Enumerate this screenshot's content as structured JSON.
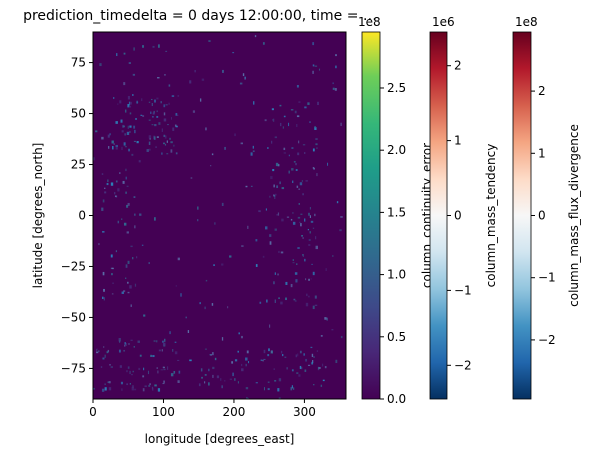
{
  "chart_data": {
    "type": "heatmap",
    "title": "prediction_timedelta = 0 days 12:00:00, time = …",
    "xlabel": "longitude [degrees_east]",
    "ylabel": "latitude [degrees_north]",
    "xlim": [
      0,
      359
    ],
    "ylim": [
      -90,
      90
    ],
    "x_ticks": [
      0,
      100,
      200,
      300
    ],
    "y_ticks": [
      -75,
      -50,
      -25,
      0,
      25,
      50,
      75
    ],
    "background_color": "#440154",
    "highlight_color": "#2c7fb8",
    "colorbars": [
      {
        "label": "column_continuity_error",
        "multiplier": "1e8",
        "colormap": "viridis",
        "range": [
          0,
          2.95
        ],
        "ticks": [
          0.0,
          0.5,
          1.0,
          1.5,
          2.0,
          2.5
        ],
        "tick_labels": [
          "0.0",
          "0.5",
          "1.0",
          "1.5",
          "2.0",
          "2.5"
        ]
      },
      {
        "label": "column_mass_tendency",
        "multiplier": "1e6",
        "colormap": "RdBu_r",
        "range": [
          -2.45,
          2.45
        ],
        "ticks": [
          -2,
          -1,
          0,
          1,
          2
        ],
        "tick_labels": [
          "−2",
          "−1",
          "0",
          "1",
          "2"
        ]
      },
      {
        "label": "column_mass_flux_divergence",
        "multiplier": "1e8",
        "colormap": "RdBu_r",
        "range": [
          -2.95,
          2.95
        ],
        "ticks": [
          -2,
          -1,
          0,
          1,
          2
        ],
        "tick_labels": [
          "−2",
          "−1",
          "0",
          "1",
          "2"
        ]
      }
    ]
  }
}
